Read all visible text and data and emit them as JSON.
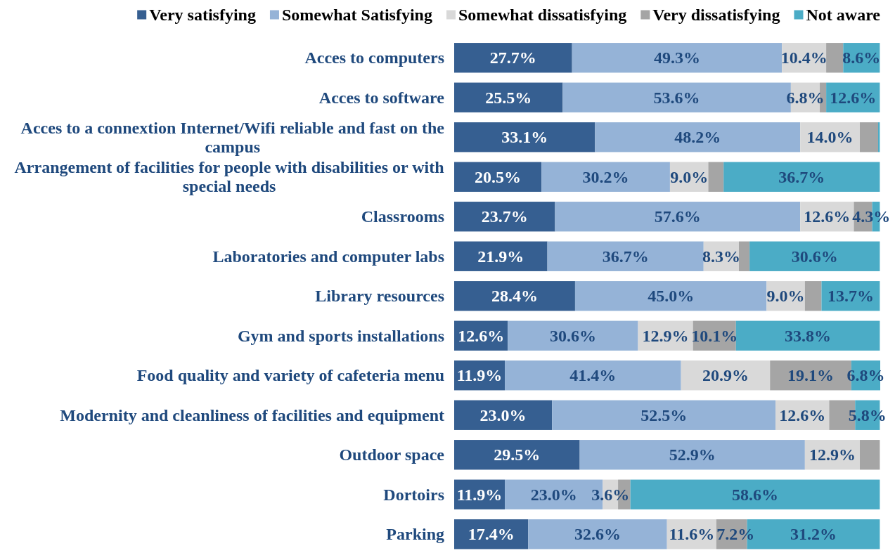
{
  "chart_data": {
    "type": "bar",
    "orientation": "horizontal",
    "stacked": true,
    "legend": "top",
    "tick_labels": "y",
    "categories": [
      "Acces to computers",
      "Acces to software",
      "Acces to a connextion Internet/Wifi reliable and fast on the campus",
      "Arrangement of facilities for people with disabilities or with special needs",
      "Classrooms",
      "Laboratories and computer labs",
      "Library resources",
      "Gym and sports installations",
      "Food quality and variety of cafeteria menu",
      "Modernity and cleanliness of facilities and equipment",
      "Outdoor space",
      "Dortoirs",
      "Parking"
    ],
    "series": [
      {
        "name": "Very satisfying",
        "color": "#365f91",
        "values": [
          27.7,
          25.5,
          33.1,
          20.5,
          23.7,
          21.9,
          28.4,
          12.6,
          11.9,
          23.0,
          29.5,
          11.9,
          17.4
        ],
        "value_labels": [
          "27.7%",
          "25.5%",
          "33.1%",
          "20.5%",
          "23.7%",
          "21.9%",
          "28.4%",
          "12.6%",
          "11.9%",
          "23.0%",
          "29.5%",
          "11.9%",
          "17.4%"
        ]
      },
      {
        "name": "Somewhat Satisfying",
        "color": "#95b3d7",
        "values": [
          49.3,
          53.6,
          48.2,
          30.2,
          57.6,
          36.7,
          45.0,
          30.6,
          41.4,
          52.5,
          52.9,
          23.0,
          32.6
        ],
        "value_labels": [
          "49.3%",
          "53.6%",
          "48.2%",
          "30.2%",
          "57.6%",
          "36.7%",
          "45.0%",
          "30.6%",
          "41.4%",
          "52.5%",
          "52.9%",
          "23.0%",
          "32.6%"
        ]
      },
      {
        "name": "Somewhat dissatisfying",
        "color": "#d9d9d9",
        "values": [
          10.4,
          6.8,
          14.0,
          9.0,
          12.6,
          8.3,
          9.0,
          12.9,
          20.9,
          12.6,
          12.9,
          3.6,
          11.6
        ],
        "value_labels": [
          "10.4%",
          "6.8%",
          "14.0%",
          "9.0%",
          "12.6%",
          "8.3%",
          "9.0%",
          "12.9%",
          "20.9%",
          "12.6%",
          "12.9%",
          "3.6%",
          "11.6%"
        ]
      },
      {
        "name": "Very dissatisfying",
        "color": "#a5a5a5",
        "values": [
          4.0,
          1.5,
          4.3,
          3.6,
          4.3,
          2.5,
          3.9,
          10.1,
          19.1,
          6.1,
          4.7,
          2.9,
          7.2
        ],
        "value_labels": [
          null,
          null,
          null,
          null,
          "4.3%",
          null,
          null,
          "10.1%",
          "19.1%",
          null,
          null,
          null,
          "7.2%"
        ]
      },
      {
        "name": "Not aware",
        "color": "#4bacc6",
        "values": [
          8.6,
          12.6,
          0.4,
          36.7,
          1.8,
          30.6,
          13.7,
          33.8,
          6.8,
          5.8,
          null,
          58.6,
          31.2
        ],
        "value_labels": [
          "8.6%",
          "12.6%",
          null,
          "36.7%",
          null,
          "30.6%",
          "13.7%",
          "33.8%",
          "6.8%",
          "5.8%",
          null,
          "58.6%",
          "31.2%"
        ]
      }
    ]
  }
}
